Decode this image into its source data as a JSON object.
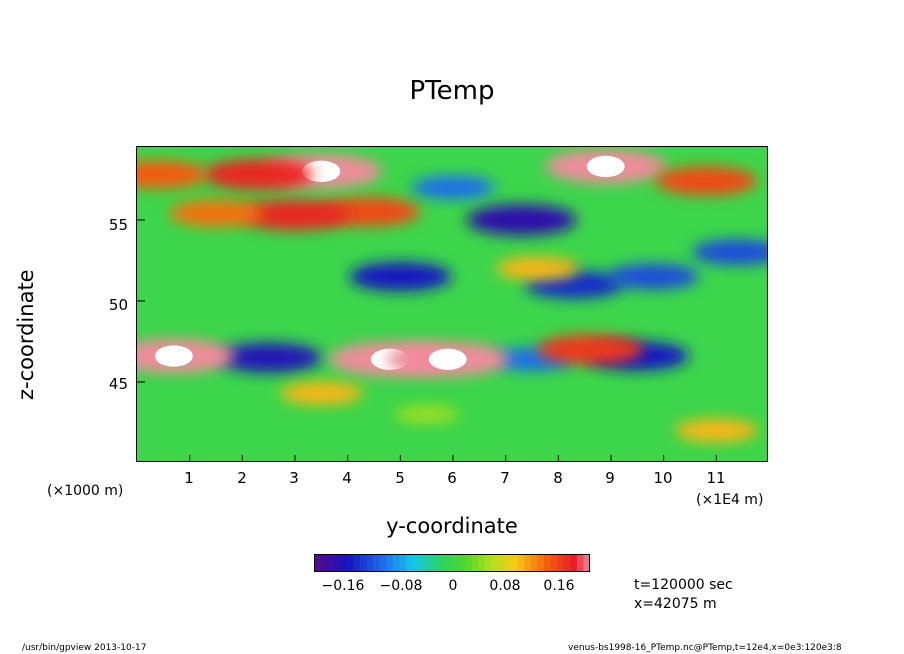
{
  "chart_data": {
    "type": "heatmap",
    "title": "PTemp",
    "xlabel": "y-coordinate",
    "ylabel": "z-coordinate",
    "x_unit": "(×1E4 m)",
    "y_unit": "(×1000 m)",
    "xlim": [
      0,
      12
    ],
    "ylim": [
      40,
      59.5
    ],
    "x_ticks": [
      "1",
      "2",
      "3",
      "4",
      "5",
      "6",
      "7",
      "8",
      "9",
      "10",
      "11"
    ],
    "y_ticks": [
      "45",
      "50",
      "55"
    ],
    "colorbar_ticks": [
      "−0.16",
      "−0.08",
      "0",
      "0.08",
      "0.16"
    ],
    "colorbar_range": [
      -0.2,
      0.2
    ],
    "features": [
      {
        "x": 4.4,
        "z": 55.5,
        "value": 0.15
      },
      {
        "x": 3.0,
        "z": 55.3,
        "value": 0.17
      },
      {
        "x": 1.5,
        "z": 55.4,
        "value": 0.13
      },
      {
        "x": 7.3,
        "z": 55.0,
        "value": -0.17
      },
      {
        "x": 5.0,
        "z": 51.5,
        "value": -0.15
      },
      {
        "x": 8.3,
        "z": 51.0,
        "value": -0.14
      },
      {
        "x": 9.8,
        "z": 51.5,
        "value": -0.12
      },
      {
        "x": 7.6,
        "z": 52.0,
        "value": 0.1
      },
      {
        "x": 2.5,
        "z": 46.5,
        "value": -0.16
      },
      {
        "x": 9.5,
        "z": 46.6,
        "value": -0.15
      },
      {
        "x": 7.5,
        "z": 46.4,
        "value": -0.1
      },
      {
        "x": 4.8,
        "z": 46.4,
        "value": 0.2
      },
      {
        "x": 5.9,
        "z": 46.4,
        "value": 0.2
      },
      {
        "x": 0.7,
        "z": 46.6,
        "value": 0.2
      },
      {
        "x": 8.6,
        "z": 47.0,
        "value": 0.16
      },
      {
        "x": 3.5,
        "z": 58.0,
        "value": 0.2
      },
      {
        "x": 8.9,
        "z": 58.3,
        "value": 0.2
      },
      {
        "x": 2.3,
        "z": 57.8,
        "value": 0.17
      },
      {
        "x": 0.4,
        "z": 57.8,
        "value": 0.14
      },
      {
        "x": 6.0,
        "z": 57.0,
        "value": -0.1
      },
      {
        "x": 10.8,
        "z": 57.4,
        "value": 0.15
      },
      {
        "x": 11.4,
        "z": 53.0,
        "value": -0.12
      },
      {
        "x": 5.5,
        "z": 43.0,
        "value": 0.05
      },
      {
        "x": 3.5,
        "z": 44.3,
        "value": 0.1
      },
      {
        "x": 11.0,
        "z": 42.0,
        "value": 0.1
      }
    ]
  },
  "info": {
    "time": "t=120000 sec",
    "position": "x=42075 m"
  },
  "footer": {
    "left": "/usr/bin/gpview   2013-10-17",
    "right": "venus-bs1998-16_PTemp.nc@PTemp,t=12e4,x=0e3:120e3:8"
  },
  "colors": {
    "neg_max": "#5a0a8c",
    "neg": "#1420d2",
    "zero": "#34d23c",
    "pos": "#ee2a10",
    "pos_max": "#f08a9a"
  }
}
